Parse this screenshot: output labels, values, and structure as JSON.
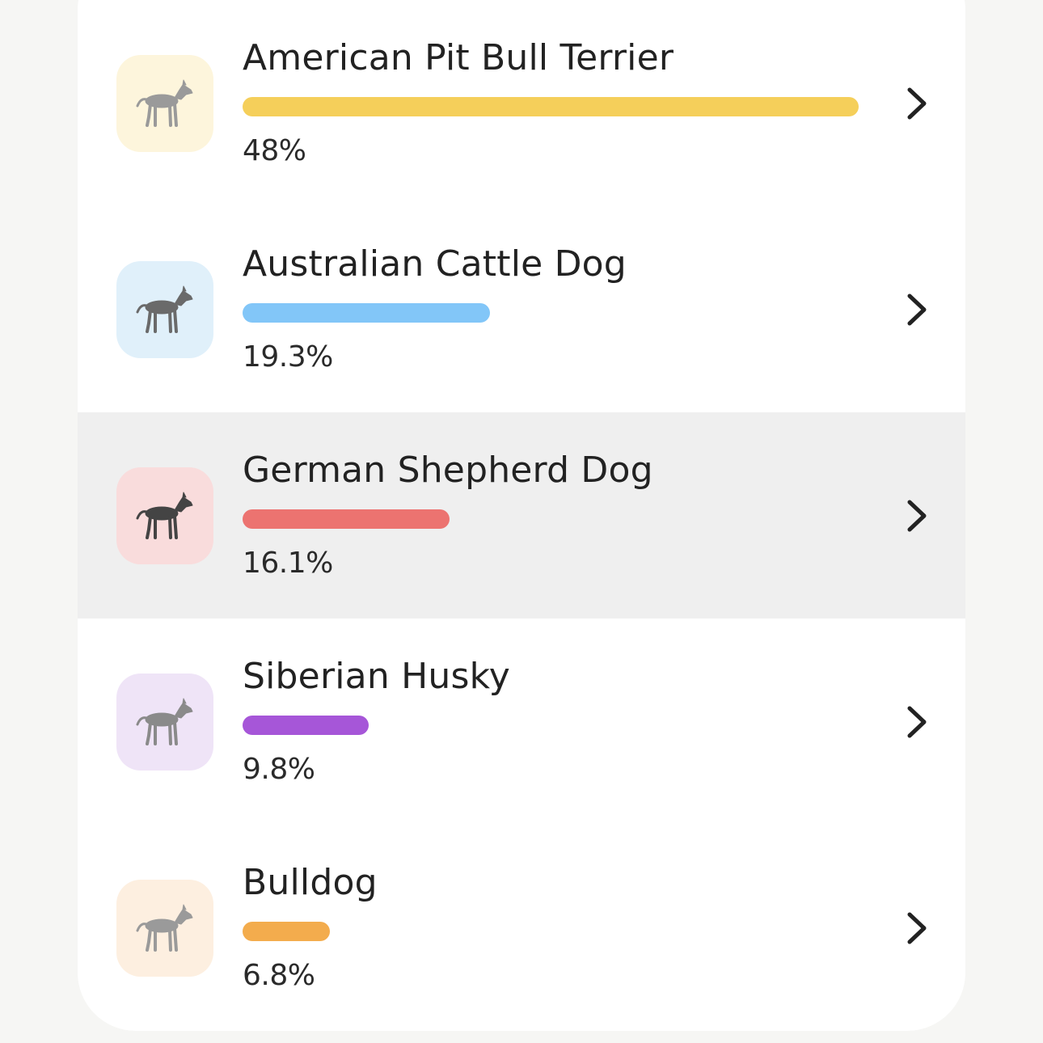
{
  "breeds": [
    {
      "name": "American Pit Bull Terrier",
      "percent_label": "48%",
      "percent": 48,
      "bar_color": "#f5cf5a",
      "thumb_bg": "#fdf5dc",
      "dog_color": "#9a9a9a",
      "icon": "pit-bull-dog-icon",
      "selected": false
    },
    {
      "name": "Australian Cattle Dog",
      "percent_label": "19.3%",
      "percent": 19.3,
      "bar_color": "#82c6f8",
      "thumb_bg": "#e0f0fa",
      "dog_color": "#6a6a6a",
      "icon": "cattle-dog-icon",
      "selected": false
    },
    {
      "name": "German Shepherd Dog",
      "percent_label": "16.1%",
      "percent": 16.1,
      "bar_color": "#ec7370",
      "thumb_bg": "#f9dcdc",
      "dog_color": "#444444",
      "icon": "german-shepherd-dog-icon",
      "selected": true
    },
    {
      "name": "Siberian Husky",
      "percent_label": "9.8%",
      "percent": 9.8,
      "bar_color": "#a656d8",
      "thumb_bg": "#efe4f7",
      "dog_color": "#8a8a8a",
      "icon": "siberian-husky-dog-icon",
      "selected": false
    },
    {
      "name": "Bulldog",
      "percent_label": "6.8%",
      "percent": 6.8,
      "bar_color": "#f3ac4d",
      "thumb_bg": "#fdefe0",
      "dog_color": "#9a9a9a",
      "icon": "bulldog-dog-icon",
      "selected": false
    }
  ],
  "scale_max_percent": 48
}
